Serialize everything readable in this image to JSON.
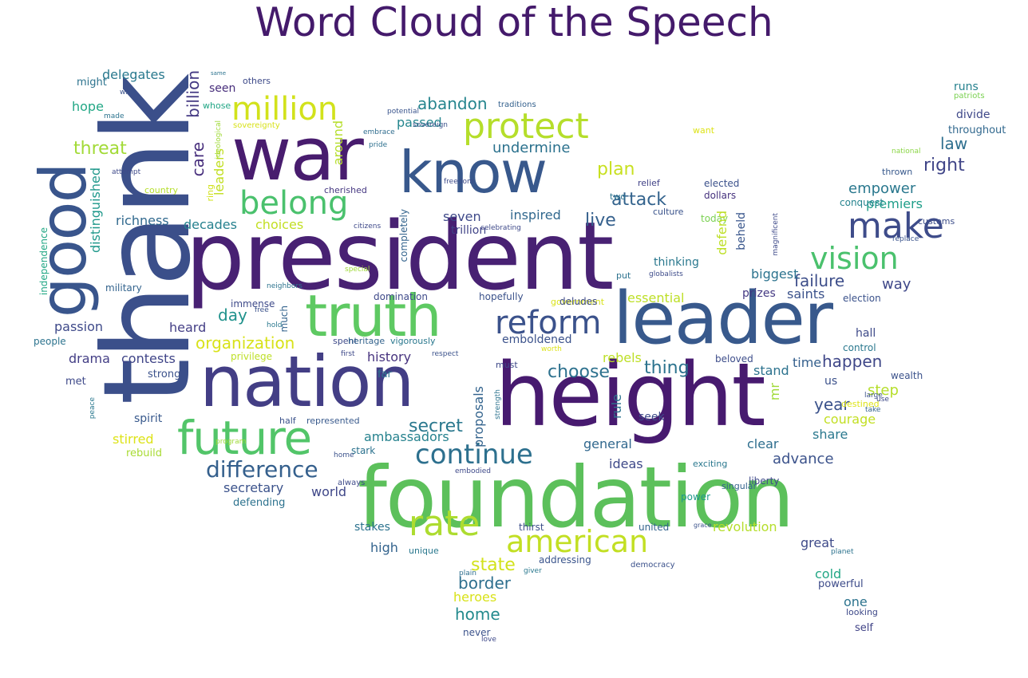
{
  "title": "Word Cloud of the Speech",
  "words": [
    {
      "text": "president",
      "color": "#482173"
    },
    {
      "text": "thank",
      "color": "#3b4f8a"
    },
    {
      "text": "foundation",
      "color": "#5cc05b"
    },
    {
      "text": "height",
      "color": "#471a6f"
    },
    {
      "text": "leader",
      "color": "#38598c"
    },
    {
      "text": "nation",
      "color": "#433e85"
    },
    {
      "text": "war",
      "color": "#481c6e"
    },
    {
      "text": "know",
      "color": "#38588c"
    },
    {
      "text": "truth",
      "color": "#5ec962"
    },
    {
      "text": "good",
      "color": "#39558c"
    },
    {
      "text": "future",
      "color": "#52c569"
    },
    {
      "text": "million",
      "color": "#d2e21b"
    },
    {
      "text": "protect",
      "color": "#b5de2b"
    },
    {
      "text": "belong",
      "color": "#4ac16d"
    },
    {
      "text": "make",
      "color": "#3e4c8a"
    },
    {
      "text": "vision",
      "color": "#4ac16d"
    },
    {
      "text": "reform",
      "color": "#3b528b"
    },
    {
      "text": "american",
      "color": "#c2df23"
    },
    {
      "text": "rate",
      "color": "#addc30"
    },
    {
      "text": "continue",
      "color": "#2d708e"
    },
    {
      "text": "difference",
      "color": "#35608d"
    },
    {
      "text": "organization",
      "color": "#d8e219"
    },
    {
      "text": "billion",
      "color": "#443983"
    },
    {
      "text": "care",
      "color": "#472e7c"
    },
    {
      "text": "threat",
      "color": "#a2da37"
    },
    {
      "text": "abandon",
      "color": "#25858e"
    },
    {
      "text": "undermine",
      "color": "#2c728e"
    },
    {
      "text": "passed",
      "color": "#24868e"
    },
    {
      "text": "plan",
      "color": "#c8e020"
    },
    {
      "text": "attack",
      "color": "#33638d"
    },
    {
      "text": "live",
      "color": "#35608d"
    },
    {
      "text": "inspired",
      "color": "#31688e"
    },
    {
      "text": "seven",
      "color": "#3e4989"
    },
    {
      "text": "trillion",
      "color": "#414487"
    },
    {
      "text": "empower",
      "color": "#2a788e"
    },
    {
      "text": "right",
      "color": "#404588"
    },
    {
      "text": "law",
      "color": "#2e6f8e"
    },
    {
      "text": "premiers",
      "color": "#1f9e89"
    },
    {
      "text": "failure",
      "color": "#3d4e8a"
    },
    {
      "text": "way",
      "color": "#3f4889"
    },
    {
      "text": "happen",
      "color": "#3f4788"
    },
    {
      "text": "thing",
      "color": "#2c738e"
    },
    {
      "text": "choose",
      "color": "#2d718e"
    },
    {
      "text": "step",
      "color": "#b5de2b"
    },
    {
      "text": "year",
      "color": "#3b528b"
    },
    {
      "text": "courage",
      "color": "#c2df23"
    },
    {
      "text": "share",
      "color": "#2a788e"
    },
    {
      "text": "advance",
      "color": "#3b528b"
    },
    {
      "text": "clear",
      "color": "#2e6e8e"
    },
    {
      "text": "ideas",
      "color": "#3e4989"
    },
    {
      "text": "general",
      "color": "#31688e"
    },
    {
      "text": "secret",
      "color": "#2a788e"
    },
    {
      "text": "ambassadors",
      "color": "#26828e"
    },
    {
      "text": "state",
      "color": "#d2e21b"
    },
    {
      "text": "border",
      "color": "#2e6f8e"
    },
    {
      "text": "heroes",
      "color": "#d8e219"
    },
    {
      "text": "home",
      "color": "#238a8d"
    },
    {
      "text": "secretary",
      "color": "#3b528b"
    },
    {
      "text": "world",
      "color": "#3f4788"
    },
    {
      "text": "defending",
      "color": "#2c728e"
    },
    {
      "text": "stirred",
      "color": "#dde318"
    },
    {
      "text": "rebuild",
      "color": "#a8db34"
    },
    {
      "text": "spirit",
      "color": "#38598c"
    },
    {
      "text": "drama",
      "color": "#433e85"
    },
    {
      "text": "contests",
      "color": "#404588"
    },
    {
      "text": "heard",
      "color": "#433e85"
    },
    {
      "text": "day",
      "color": "#20928c"
    },
    {
      "text": "passion",
      "color": "#3e4989"
    },
    {
      "text": "decades",
      "color": "#26818e"
    },
    {
      "text": "choices",
      "color": "#c2df23"
    },
    {
      "text": "richness",
      "color": "#30698e"
    },
    {
      "text": "distinguished",
      "color": "#1f988b"
    },
    {
      "text": "delegates",
      "color": "#29798e"
    },
    {
      "text": "hope",
      "color": "#22a785"
    },
    {
      "text": "might",
      "color": "#2c738e"
    },
    {
      "text": "seen",
      "color": "#472d7b"
    },
    {
      "text": "others",
      "color": "#3e4a89"
    },
    {
      "text": "whose",
      "color": "#21a685"
    },
    {
      "text": "sovereignty",
      "color": "#d8e219"
    },
    {
      "text": "traditions",
      "color": "#34618d"
    },
    {
      "text": "potential",
      "color": "#3a548c"
    },
    {
      "text": "embrace",
      "color": "#2f6c8e"
    },
    {
      "text": "sovereign",
      "color": "#3b528b"
    },
    {
      "text": "pride",
      "color": "#2d708e"
    },
    {
      "text": "freedom",
      "color": "#3e4c8a"
    },
    {
      "text": "cherished",
      "color": "#453781"
    },
    {
      "text": "celebrating",
      "color": "#3e4989"
    },
    {
      "text": "relief",
      "color": "#414287"
    },
    {
      "text": "two",
      "color": "#2c738e"
    },
    {
      "text": "culture",
      "color": "#3a538b"
    },
    {
      "text": "elected",
      "color": "#3b518b"
    },
    {
      "text": "dollars",
      "color": "#46327e"
    },
    {
      "text": "conquest",
      "color": "#25838e"
    },
    {
      "text": "national",
      "color": "#8bd646"
    },
    {
      "text": "runs",
      "color": "#26818e"
    },
    {
      "text": "patriots",
      "color": "#7ad151"
    },
    {
      "text": "divide",
      "color": "#3f4889"
    },
    {
      "text": "throughout",
      "color": "#31688e"
    },
    {
      "text": "thrown",
      "color": "#38598c"
    },
    {
      "text": "customs",
      "color": "#3d4e8a"
    },
    {
      "text": "replace",
      "color": "#3a548c"
    },
    {
      "text": "magnificent",
      "color": "#3e4a89"
    },
    {
      "text": "want",
      "color": "#dde318"
    },
    {
      "text": "today",
      "color": "#7ad151"
    },
    {
      "text": "beheld",
      "color": "#39568c"
    },
    {
      "text": "defend",
      "color": "#bddf26"
    },
    {
      "text": "biggest",
      "color": "#2c738e"
    },
    {
      "text": "thinking",
      "color": "#2a788e"
    },
    {
      "text": "globalists",
      "color": "#3e4c8a"
    },
    {
      "text": "put",
      "color": "#2c728e"
    },
    {
      "text": "saints",
      "color": "#3b528b"
    },
    {
      "text": "prizes",
      "color": "#443983"
    },
    {
      "text": "election",
      "color": "#3b528b"
    },
    {
      "text": "essential",
      "color": "#bddf26"
    },
    {
      "text": "government",
      "color": "#d8e219"
    },
    {
      "text": "hall",
      "color": "#3e4a89"
    },
    {
      "text": "control",
      "color": "#2a788e"
    },
    {
      "text": "wealth",
      "color": "#3b528b"
    },
    {
      "text": "time",
      "color": "#35608d"
    },
    {
      "text": "us",
      "color": "#3b518b"
    },
    {
      "text": "rebels",
      "color": "#bddf26"
    },
    {
      "text": "stand",
      "color": "#2c728e"
    },
    {
      "text": "beloved",
      "color": "#3d4d8a"
    },
    {
      "text": "must",
      "color": "#3e4989"
    },
    {
      "text": "rule",
      "color": "#2c728e"
    },
    {
      "text": "seek",
      "color": "#3e4c8a"
    },
    {
      "text": "mr",
      "color": "#a0da39"
    },
    {
      "text": "destined",
      "color": "#dde318"
    },
    {
      "text": "liberty",
      "color": "#3e4989"
    },
    {
      "text": "singular",
      "color": "#33638d"
    },
    {
      "text": "exciting",
      "color": "#2a788e"
    },
    {
      "text": "power",
      "color": "#1f988b"
    },
    {
      "text": "revolution",
      "color": "#b5de2b"
    },
    {
      "text": "united",
      "color": "#33638d"
    },
    {
      "text": "thirst",
      "color": "#3d4e8a"
    },
    {
      "text": "great",
      "color": "#3e4a89"
    },
    {
      "text": "planet",
      "color": "#2c738e"
    },
    {
      "text": "cold",
      "color": "#22a785"
    },
    {
      "text": "powerful",
      "color": "#3e4c8a"
    },
    {
      "text": "one",
      "color": "#2c738e"
    },
    {
      "text": "looking",
      "color": "#3e4989"
    },
    {
      "text": "self",
      "color": "#414487"
    },
    {
      "text": "democracy",
      "color": "#3b518b"
    },
    {
      "text": "addressing",
      "color": "#3a548c"
    },
    {
      "text": "high",
      "color": "#33638d"
    },
    {
      "text": "stakes",
      "color": "#2c728e"
    },
    {
      "text": "unique",
      "color": "#2a788e"
    },
    {
      "text": "stark",
      "color": "#2c728e"
    },
    {
      "text": "always",
      "color": "#3e4a89"
    },
    {
      "text": "plain",
      "color": "#2e6e8e"
    },
    {
      "text": "never",
      "color": "#3b528b"
    },
    {
      "text": "love",
      "color": "#3e4989"
    },
    {
      "text": "proposals",
      "color": "#33638d"
    },
    {
      "text": "embodied",
      "color": "#3e4989"
    },
    {
      "text": "strength",
      "color": "#2c738e"
    },
    {
      "text": "half",
      "color": "#3b528b"
    },
    {
      "text": "represented",
      "color": "#38598c"
    },
    {
      "text": "program",
      "color": "#a0da39"
    },
    {
      "text": "history",
      "color": "#46327e"
    },
    {
      "text": "emboldened",
      "color": "#3b528b"
    },
    {
      "text": "far",
      "color": "#2c738e"
    },
    {
      "text": "spent",
      "color": "#3e4a89"
    },
    {
      "text": "heritage",
      "color": "#33638d"
    },
    {
      "text": "vigorously",
      "color": "#2a788e"
    },
    {
      "text": "respect",
      "color": "#3b528b"
    },
    {
      "text": "worth",
      "color": "#dde318"
    },
    {
      "text": "first",
      "color": "#3e4989"
    },
    {
      "text": "privilege",
      "color": "#bddf26"
    },
    {
      "text": "strong",
      "color": "#3b528b"
    },
    {
      "text": "met",
      "color": "#3e4989"
    },
    {
      "text": "peace",
      "color": "#2a788e"
    },
    {
      "text": "home",
      "color": "#3b528b"
    },
    {
      "text": "people",
      "color": "#2c738e"
    },
    {
      "text": "military",
      "color": "#33638d"
    },
    {
      "text": "independence",
      "color": "#22a785"
    },
    {
      "text": "country",
      "color": "#b5de2b"
    },
    {
      "text": "attempt",
      "color": "#3e4989"
    },
    {
      "text": "wise",
      "color": "#3b528b"
    },
    {
      "text": "made",
      "color": "#2c738e"
    },
    {
      "text": "immense",
      "color": "#3e4a89"
    },
    {
      "text": "much",
      "color": "#33638d"
    },
    {
      "text": "hold",
      "color": "#2a788e"
    },
    {
      "text": "free",
      "color": "#3b528b"
    },
    {
      "text": "neighbors",
      "color": "#2c738e"
    },
    {
      "text": "special",
      "color": "#a0da39"
    },
    {
      "text": "domination",
      "color": "#3e4989"
    },
    {
      "text": "hopefully",
      "color": "#3b528b"
    },
    {
      "text": "deludes",
      "color": "#3e4a89"
    },
    {
      "text": "completely",
      "color": "#33638d"
    },
    {
      "text": "around",
      "color": "#b5de2b"
    },
    {
      "text": "leaders",
      "color": "#c2df23"
    },
    {
      "text": "ring",
      "color": "#d2e21b"
    },
    {
      "text": "ideological",
      "color": "#a0da39"
    },
    {
      "text": "citizens",
      "color": "#3e4989"
    },
    {
      "text": "giver",
      "color": "#2a788e"
    },
    {
      "text": "large",
      "color": "#3b528b"
    },
    {
      "text": "take",
      "color": "#33638d"
    },
    {
      "text": "use",
      "color": "#3e4989"
    },
    {
      "text": "same",
      "color": "#2c738e"
    },
    {
      "text": "grace",
      "color": "#3b528b"
    }
  ]
}
